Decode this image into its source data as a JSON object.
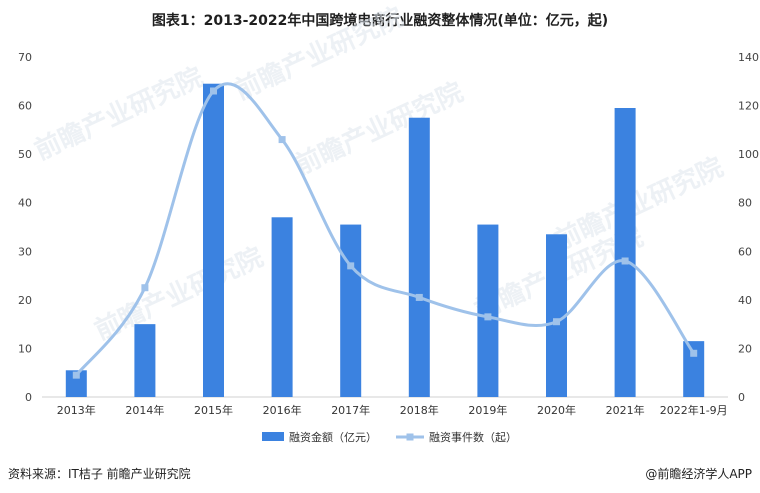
{
  "title": "图表1：2013-2022年中国跨境电商行业融资整体情况(单位：亿元，起)",
  "watermark": "前瞻产业研究院",
  "source": "资料来源：IT桔子 前瞻产业研究院",
  "brand": "@前瞻经济学人APP",
  "colors": {
    "bar": "#3b82e0",
    "line": "#9fc2ea",
    "axis": "#d0d0d0"
  },
  "chart_data": {
    "type": "bar",
    "categories": [
      "2013年",
      "2014年",
      "2015年",
      "2016年",
      "2017年",
      "2018年",
      "2019年",
      "2020年",
      "2021年",
      "2022年1-9月"
    ],
    "series": [
      {
        "name": "融资金额（亿元）",
        "type": "bar",
        "axis": "left",
        "values": [
          5.5,
          15,
          64.5,
          37,
          35.5,
          57.5,
          35.5,
          33.5,
          59.5,
          11.5
        ]
      },
      {
        "name": "融资事件数（起）",
        "type": "line",
        "axis": "right",
        "values": [
          9,
          45,
          126,
          106,
          54,
          41,
          33,
          31,
          56,
          18
        ]
      }
    ],
    "yleft": {
      "min": 0,
      "max": 70,
      "ticks": [
        0,
        10,
        20,
        30,
        40,
        50,
        60,
        70
      ]
    },
    "yright": {
      "min": 0,
      "max": 140,
      "ticks": [
        0,
        20,
        40,
        60,
        80,
        100,
        120,
        140
      ]
    },
    "grid": false,
    "legend": "bottom"
  }
}
